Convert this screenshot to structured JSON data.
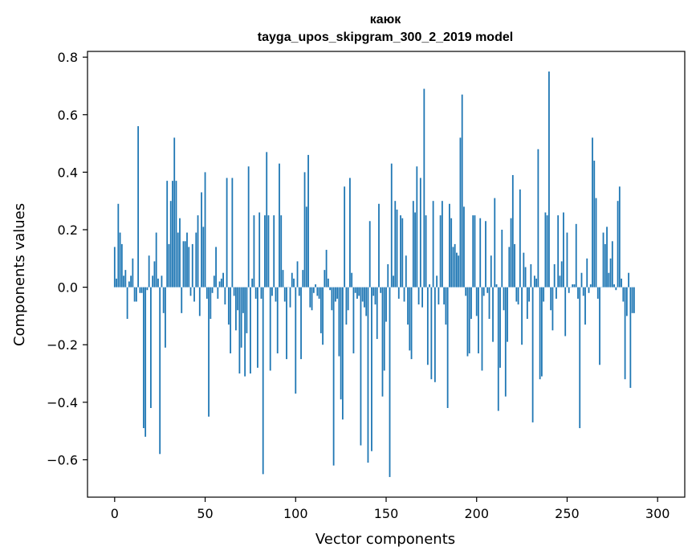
{
  "chart_data": {
    "type": "bar",
    "title": "каюк",
    "subtitle": "tayga_upos_skipgram_300_2_2019 model",
    "xlabel": "Vector components",
    "ylabel": "Components values",
    "xlim": [
      -15,
      315
    ],
    "ylim": [
      -0.73,
      0.82
    ],
    "x_ticks": [
      0,
      50,
      100,
      150,
      200,
      250,
      300
    ],
    "x_tick_labels": [
      "0",
      "50",
      "100",
      "150",
      "200",
      "250",
      "300"
    ],
    "y_ticks": [
      -0.6,
      -0.4,
      -0.2,
      0.0,
      0.2,
      0.4,
      0.6,
      0.8
    ],
    "y_tick_labels": [
      "−0.6",
      "−0.4",
      "−0.2",
      "0.0",
      "0.2",
      "0.4",
      "0.6",
      "0.8"
    ],
    "bar_color": "#1f77b4",
    "grid": false,
    "x_start": 0,
    "values": [
      0.14,
      0.03,
      0.29,
      0.19,
      0.15,
      0.04,
      0.06,
      -0.11,
      0.02,
      0.04,
      0.1,
      -0.05,
      -0.05,
      0.56,
      -0.02,
      -0.02,
      -0.49,
      -0.52,
      -0.01,
      0.11,
      -0.42,
      0.04,
      0.09,
      0.19,
      0.03,
      -0.58,
      0.04,
      -0.09,
      -0.21,
      0.37,
      0.15,
      0.3,
      0.37,
      0.52,
      0.37,
      0.19,
      0.24,
      -0.09,
      0.16,
      0.16,
      0.19,
      0.14,
      -0.03,
      0.15,
      -0.05,
      0.19,
      0.25,
      -0.1,
      0.33,
      0.21,
      0.4,
      -0.04,
      -0.45,
      -0.11,
      -0.02,
      0.04,
      0.14,
      -0.04,
      0.02,
      0.03,
      0.05,
      -0.06,
      0.38,
      -0.13,
      -0.23,
      0.38,
      -0.03,
      -0.15,
      -0.08,
      -0.3,
      -0.21,
      -0.09,
      -0.31,
      -0.16,
      0.42,
      -0.3,
      0.03,
      0.25,
      -0.04,
      -0.28,
      0.26,
      -0.04,
      -0.65,
      0.25,
      0.47,
      0.25,
      -0.29,
      -0.03,
      0.25,
      -0.05,
      -0.23,
      0.43,
      0.25,
      0.06,
      -0.05,
      -0.25,
      0.0,
      -0.07,
      0.05,
      0.03,
      -0.37,
      0.09,
      -0.03,
      -0.25,
      0.06,
      0.4,
      0.28,
      0.46,
      -0.07,
      -0.08,
      -0.02,
      0.01,
      -0.03,
      -0.04,
      -0.16,
      -0.2,
      0.06,
      0.13,
      0.03,
      -0.01,
      -0.08,
      -0.62,
      -0.05,
      -0.04,
      -0.24,
      -0.39,
      -0.46,
      0.35,
      -0.13,
      -0.08,
      0.38,
      0.05,
      -0.23,
      -0.02,
      -0.04,
      -0.03,
      -0.55,
      -0.05,
      -0.07,
      -0.1,
      -0.61,
      0.23,
      -0.57,
      -0.03,
      -0.06,
      -0.18,
      0.29,
      -0.02,
      -0.38,
      -0.29,
      -0.12,
      0.08,
      -0.66,
      0.43,
      0.04,
      0.3,
      0.27,
      -0.04,
      0.25,
      0.24,
      -0.05,
      0.11,
      -0.13,
      -0.22,
      -0.25,
      0.3,
      0.26,
      0.42,
      -0.06,
      0.38,
      -0.07,
      0.69,
      0.25,
      -0.27,
      0.01,
      -0.32,
      0.3,
      -0.33,
      0.04,
      -0.06,
      0.25,
      0.3,
      -0.06,
      -0.13,
      -0.42,
      0.29,
      0.24,
      0.14,
      0.15,
      0.12,
      0.11,
      0.52,
      0.67,
      0.28,
      -0.03,
      -0.24,
      -0.23,
      -0.11,
      0.25,
      0.25,
      -0.1,
      -0.23,
      0.24,
      -0.29,
      -0.03,
      0.23,
      -0.02,
      -0.11,
      0.11,
      -0.19,
      0.31,
      0.01,
      -0.43,
      -0.28,
      0.2,
      -0.08,
      -0.38,
      -0.19,
      0.14,
      0.24,
      0.39,
      0.15,
      -0.05,
      -0.06,
      0.34,
      -0.2,
      0.12,
      0.07,
      -0.11,
      -0.05,
      0.08,
      -0.47,
      0.04,
      0.03,
      0.48,
      -0.32,
      -0.31,
      -0.05,
      0.26,
      0.25,
      0.75,
      -0.08,
      -0.15,
      0.08,
      -0.04,
      0.25,
      0.04,
      0.09,
      0.26,
      -0.17,
      0.19,
      -0.02,
      0.0,
      0.01,
      0.01,
      0.22,
      -0.04,
      -0.49,
      0.05,
      -0.03,
      -0.13,
      0.1,
      -0.02,
      0.01,
      0.52,
      0.44,
      0.31,
      -0.04,
      -0.27,
      0.0,
      0.19,
      0.15,
      0.21,
      0.05,
      0.1,
      0.16,
      0.01,
      -0.01,
      0.3,
      0.35,
      0.03,
      -0.05,
      -0.32,
      -0.1,
      0.05,
      -0.35,
      -0.09,
      -0.09
    ]
  }
}
